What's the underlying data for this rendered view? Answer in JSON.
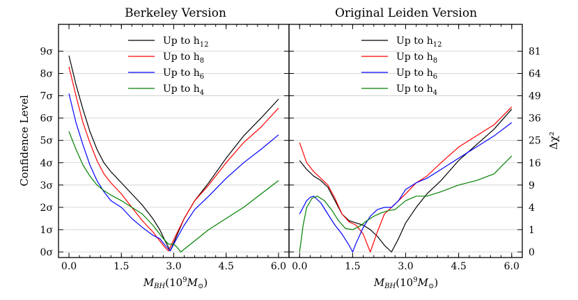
{
  "figure": {
    "ylabel": "Confidence Level",
    "y2label": "Δχ²"
  },
  "chart_data": [
    {
      "type": "line",
      "title": "Berkeley Version",
      "xlabel": "M_BH(10^9 M_⊙)",
      "xlabel_main": "M",
      "xlabel_sub": "BH",
      "xlabel_rest": "(10",
      "xlabel_sup": "9",
      "xlabel_sun": "M",
      "xlabel_sunsub": "⊙",
      "xlabel_close": ")",
      "xlim": [
        -0.3,
        6.3
      ],
      "ylim": [
        -0.25,
        10.2
      ],
      "xticks": [
        "0.0",
        "1.5",
        "3.0",
        "4.5",
        "6.0"
      ],
      "xtick_values": [
        0,
        1.5,
        3.0,
        4.5,
        6.0
      ],
      "yticks": [
        "0σ",
        "1σ",
        "2σ",
        "3σ",
        "4σ",
        "5σ",
        "6σ",
        "7σ",
        "8σ",
        "9σ"
      ],
      "ytick_values": [
        0,
        1,
        2,
        3,
        4,
        5,
        6,
        7,
        8,
        9
      ],
      "grid": "horizontal",
      "legend_position": "top-center",
      "series": [
        {
          "name": "Up to h12",
          "label_base": "Up to h",
          "label_sub": "12",
          "color": "#000000",
          "x": [
            0,
            0.2,
            0.4,
            0.6,
            0.8,
            1.0,
            1.2,
            1.5,
            1.8,
            2.1,
            2.4,
            2.6,
            2.75,
            2.9,
            3.05,
            3.3,
            3.6,
            4.0,
            4.5,
            5.0,
            5.5,
            6.0
          ],
          "y": [
            8.8,
            7.5,
            6.4,
            5.4,
            4.6,
            4.0,
            3.6,
            3.1,
            2.6,
            2.1,
            1.5,
            1.0,
            0.5,
            0.05,
            0.6,
            1.5,
            2.3,
            3.1,
            4.2,
            5.2,
            6.0,
            6.85
          ]
        },
        {
          "name": "Up to h8",
          "label_base": "Up to h",
          "label_sub": "8",
          "color": "#ff0000",
          "x": [
            0,
            0.2,
            0.4,
            0.6,
            0.8,
            1.0,
            1.2,
            1.5,
            1.8,
            2.1,
            2.4,
            2.6,
            2.75,
            2.85,
            3.0,
            3.3,
            3.6,
            4.0,
            4.5,
            5.0,
            5.5,
            6.0
          ],
          "y": [
            8.3,
            7.0,
            5.8,
            4.9,
            4.1,
            3.5,
            3.1,
            2.6,
            2.0,
            1.4,
            0.9,
            0.5,
            0.2,
            0.05,
            0.55,
            1.5,
            2.3,
            3.0,
            4.0,
            4.9,
            5.6,
            6.45
          ]
        },
        {
          "name": "Up to h6",
          "label_base": "Up to h",
          "label_sub": "6",
          "color": "#0000ff",
          "x": [
            0,
            0.2,
            0.4,
            0.6,
            0.8,
            1.0,
            1.2,
            1.5,
            1.8,
            2.1,
            2.4,
            2.6,
            2.75,
            2.9,
            3.05,
            3.3,
            3.6,
            4.0,
            4.5,
            5.0,
            5.5,
            6.0
          ],
          "y": [
            7.1,
            5.8,
            4.8,
            3.9,
            3.2,
            2.7,
            2.3,
            2.0,
            1.5,
            1.1,
            0.75,
            0.6,
            0.3,
            0.05,
            0.5,
            1.2,
            1.9,
            2.5,
            3.3,
            4.0,
            4.6,
            5.25
          ]
        },
        {
          "name": "Up to h4",
          "label_base": "Up to h",
          "label_sub": "4",
          "color": "#008000",
          "x": [
            0,
            0.2,
            0.4,
            0.6,
            0.8,
            1.0,
            1.2,
            1.5,
            1.8,
            2.1,
            2.4,
            2.7,
            2.85,
            3.0,
            3.1,
            3.2,
            3.6,
            4.0,
            4.5,
            5.0,
            5.5,
            6.0
          ],
          "y": [
            5.4,
            4.6,
            3.9,
            3.4,
            3.0,
            2.75,
            2.55,
            2.3,
            2.0,
            1.7,
            1.2,
            0.6,
            0.35,
            0.35,
            0.2,
            0.0,
            0.5,
            1.0,
            1.5,
            2.0,
            2.6,
            3.2
          ]
        }
      ]
    },
    {
      "type": "line",
      "title": "Original Leiden Version",
      "xlabel": "M_BH(10^9 M_⊙)",
      "xlabel_main": "M",
      "xlabel_sub": "BH",
      "xlabel_rest": "(10",
      "xlabel_sup": "9",
      "xlabel_sun": "M",
      "xlabel_sunsub": "⊙",
      "xlabel_close": ")",
      "xlim": [
        -0.3,
        6.3
      ],
      "ylim": [
        -0.25,
        10.2
      ],
      "xticks": [
        "0.0",
        "1.5",
        "3.0",
        "4.5",
        "6.0"
      ],
      "xtick_values": [
        0,
        1.5,
        3.0,
        4.5,
        6.0
      ],
      "y2ticks": [
        "0",
        "1",
        "4",
        "9",
        "16",
        "25",
        "36",
        "49",
        "64",
        "81"
      ],
      "y2tick_values": [
        0,
        1,
        2,
        3,
        4,
        5,
        6,
        7,
        8,
        9
      ],
      "grid": "horizontal",
      "legend_position": "top-center",
      "series": [
        {
          "name": "Up to h12",
          "label_base": "Up to h",
          "label_sub": "12",
          "color": "#000000",
          "x": [
            0,
            0.2,
            0.4,
            0.6,
            0.8,
            1.0,
            1.2,
            1.4,
            1.6,
            1.8,
            2.0,
            2.2,
            2.4,
            2.6,
            2.8,
            3.0,
            3.3,
            3.6,
            4.0,
            4.5,
            5.0,
            5.5,
            6.0
          ],
          "y": [
            4.1,
            3.7,
            3.4,
            3.2,
            2.9,
            2.3,
            1.7,
            1.4,
            1.3,
            1.2,
            1.0,
            0.7,
            0.3,
            0.0,
            0.6,
            1.3,
            2.0,
            2.6,
            3.2,
            4.1,
            4.8,
            5.5,
            6.4
          ]
        },
        {
          "name": "Up to h8",
          "label_base": "Up to h",
          "label_sub": "8",
          "color": "#ff0000",
          "x": [
            0,
            0.2,
            0.4,
            0.6,
            0.8,
            1.0,
            1.2,
            1.4,
            1.6,
            1.8,
            2.0,
            2.2,
            2.4,
            2.6,
            2.8,
            3.0,
            3.3,
            3.6,
            4.0,
            4.5,
            5.0,
            5.5,
            6.0
          ],
          "y": [
            4.9,
            4.0,
            3.6,
            3.3,
            3.0,
            2.4,
            1.7,
            1.35,
            1.2,
            0.8,
            0.0,
            0.9,
            1.7,
            2.0,
            2.3,
            2.6,
            3.1,
            3.4,
            4.0,
            4.7,
            5.2,
            5.7,
            6.5
          ]
        },
        {
          "name": "Up to h6",
          "label_base": "Up to h",
          "label_sub": "6",
          "color": "#0000ff",
          "x": [
            0,
            0.2,
            0.3,
            0.4,
            0.6,
            0.8,
            1.0,
            1.2,
            1.4,
            1.5,
            1.6,
            1.8,
            2.0,
            2.2,
            2.4,
            2.6,
            2.8,
            3.0,
            3.3,
            3.6,
            4.0,
            4.5,
            5.0,
            5.5,
            6.0
          ],
          "y": [
            1.7,
            2.3,
            2.45,
            2.5,
            2.2,
            1.7,
            1.2,
            0.8,
            0.3,
            0.0,
            0.4,
            1.1,
            1.6,
            1.9,
            2.0,
            2.0,
            2.3,
            2.8,
            3.1,
            3.3,
            3.7,
            4.2,
            4.7,
            5.2,
            5.8
          ]
        },
        {
          "name": "Up to h4",
          "label_base": "Up to h",
          "label_sub": "4",
          "color": "#008000",
          "x": [
            0,
            0.1,
            0.2,
            0.35,
            0.5,
            0.7,
            0.9,
            1.1,
            1.3,
            1.5,
            1.7,
            1.9,
            2.1,
            2.3,
            2.5,
            2.7,
            3.0,
            3.3,
            3.6,
            4.0,
            4.5,
            5.0,
            5.5,
            6.0
          ],
          "y": [
            0.0,
            1.2,
            2.0,
            2.4,
            2.5,
            2.3,
            1.9,
            1.4,
            1.05,
            1.0,
            1.15,
            1.4,
            1.6,
            1.75,
            1.85,
            1.9,
            2.3,
            2.5,
            2.5,
            2.7,
            3.0,
            3.2,
            3.5,
            4.3
          ]
        }
      ]
    }
  ]
}
